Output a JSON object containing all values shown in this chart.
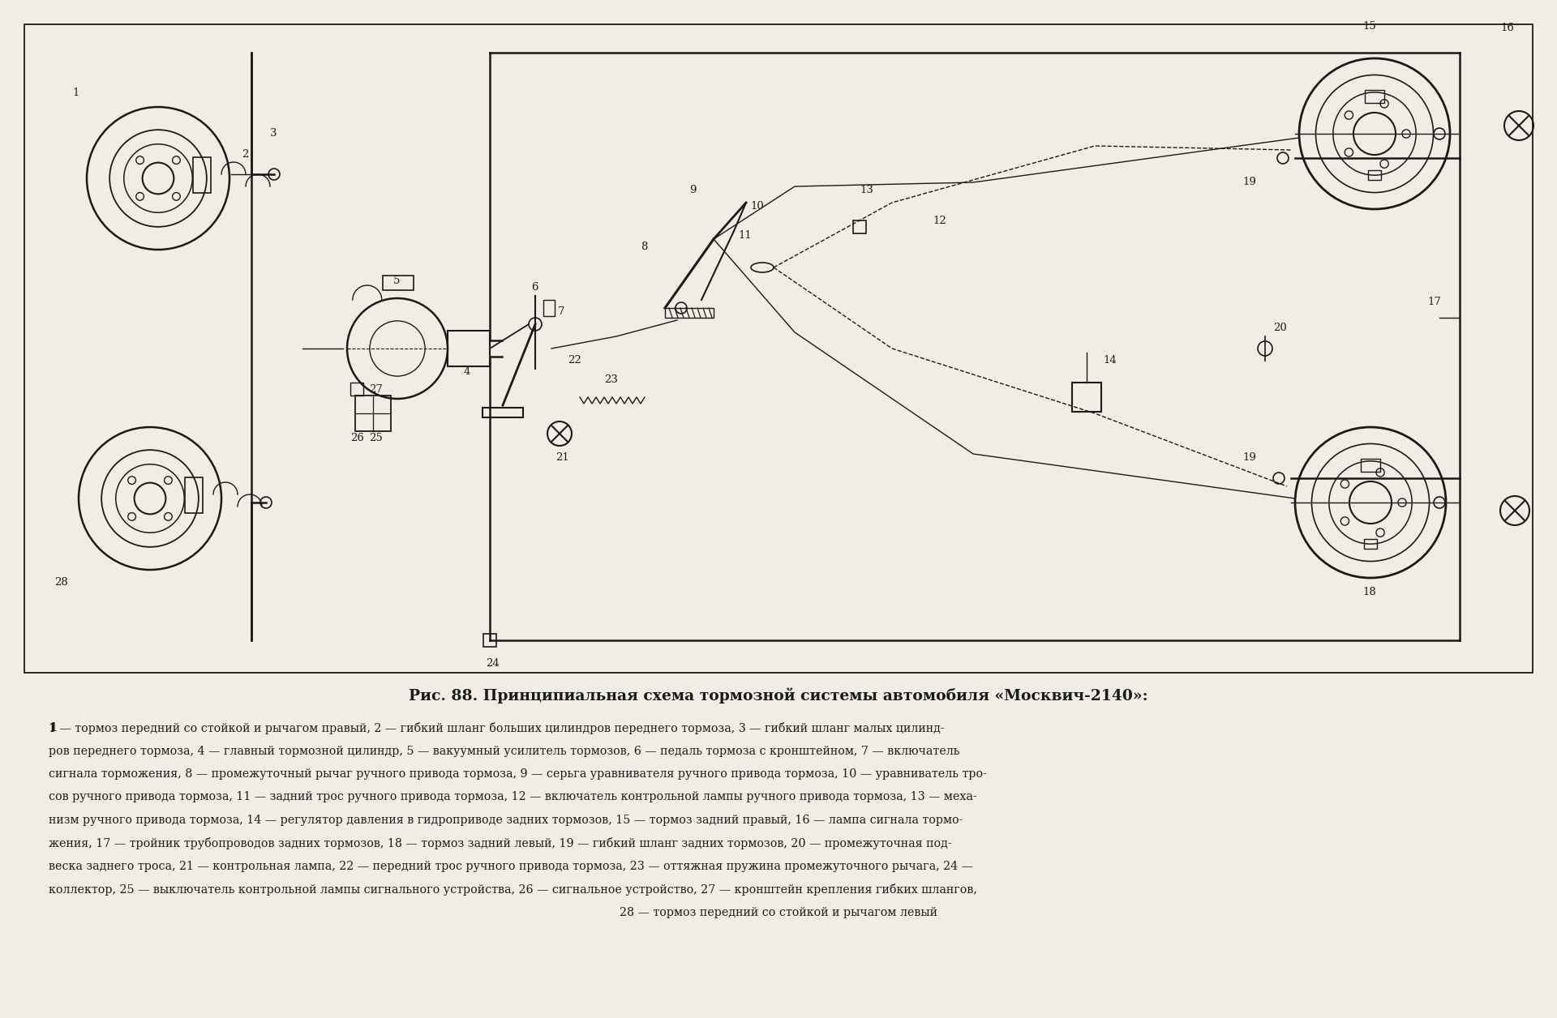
{
  "bg_color": "#f0ede4",
  "line_color": "#1a1a1a",
  "title": "Рис. 88. Принципиальная схема тормозной системы автомобиля «Москвич-2140»:",
  "title_fontsize": 13.5,
  "caption_fontsize": 10.3,
  "caption_lines": [
    "1 — тормоз передний со стойкой и рычагом правый, 2 — гибкий шланг больших цилиндров переднего тормоза, 3 — гибкий шланг малых цилинд-",
    "ров переднего тормоза, 4 — главный тормозной цилиндр, 5 — вакуумный усилитель тормозов, 6 — педаль тормоза с кронштейном, 7 — включатель",
    "сигнала торможения, 8 — промежуточный рычаг ручного привода тормоза, 9 — серьга уравнивателя ручного привода тормоза, 10 — уравниватель тро-",
    "сов ручного привода тормоза, 11 — задний трос ручного привода тормоза, 12 — включатель контрольной лампы ручного привода тормоза, 13 — меха-",
    "низм ручного привода тормоза, 14 — регулятор давления в гидроприводе задних тормозов, 15 — тормоз задний правый, 16 — лампа сигнала тормо-",
    "жения, 17 — тройник трубопроводов задних тормозов, 18 — тормоз задний левый, 19 — гибкий шланг задних тормозов, 20 — промежуточная под-",
    "веска заднего троса, 21 — контрольная лампа, 22 — передний трос ручного привода тормоза, 23 — оттяжная пружина промежуточного рычага, 24 —",
    "коллектор, 25 — выключатель контрольной лампы сигнального устройства, 26 — сигнальное устройство, 27 — кронштейн крепления гибких шлангов,",
    "28 — тормоз передний со стойкой и рычагом левый"
  ],
  "bold_items": [
    "1",
    "2",
    "3",
    "4",
    "5",
    "6",
    "7",
    "8",
    "9",
    "10",
    "11",
    "12",
    "13",
    "14",
    "15",
    "16",
    "17",
    "18",
    "19",
    "20",
    "21",
    "22",
    "23",
    "24",
    "25",
    "26",
    "27",
    "28"
  ]
}
